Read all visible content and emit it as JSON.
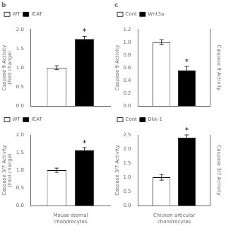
{
  "chart_data": [
    {
      "type": "bar",
      "title": "b",
      "ylabel": "Caspase 9 Activity\n(Fold change)",
      "categories": [
        null
      ],
      "series": [
        {
          "name": "WT",
          "color": "white",
          "values": [
            1.0
          ],
          "errors": [
            0.05
          ]
        },
        {
          "name": "ICAT",
          "color": "black",
          "values": [
            1.75
          ],
          "errors": [
            0.07
          ]
        }
      ],
      "annotations": [
        {
          "text": "*",
          "series": "ICAT"
        }
      ],
      "ylim": [
        0,
        2.0
      ],
      "yticks": [
        {
          "value": 0,
          "label": "0.0"
        },
        0.5,
        {
          "value": 1.0,
          "label": "1.0"
        },
        1.5,
        {
          "value": 2.0,
          "label": "2.0"
        }
      ],
      "grid": false,
      "legend": "upper left",
      "tick_labels": "y"
    },
    {
      "type": "bar",
      "title": "c",
      "ylabel": "Caspase 9 Activity",
      "y2label": "Caspase 9 Activity",
      "categories": [
        null
      ],
      "series": [
        {
          "name": "Cont",
          "color": "white",
          "values": [
            1.0
          ],
          "errors": [
            0.04
          ]
        },
        {
          "name": "Wnt3a",
          "color": "black",
          "values": [
            0.56
          ],
          "errors": [
            0.06
          ]
        }
      ],
      "annotations": [
        {
          "text": "*",
          "series": "Wnt3a"
        }
      ],
      "ylim": [
        0,
        1.2
      ],
      "yticks": [
        {
          "value": 0,
          "label": "0.0"
        },
        0.2,
        0.4,
        0.6,
        0.8,
        {
          "value": 1.0,
          "label": "1.0"
        },
        1.2
      ],
      "grid": false,
      "legend": "upper left",
      "tick_labels": "y"
    },
    {
      "type": "bar",
      "ylabel": "Caspase 3/7 Activity\n(Fold change)",
      "xlabel": "Mouse sternal\nchondrocytes",
      "categories": [
        null
      ],
      "series": [
        {
          "name": "WT",
          "color": "white",
          "values": [
            1.0
          ],
          "errors": [
            0.06
          ]
        },
        {
          "name": "ICAT",
          "color": "black",
          "values": [
            1.57
          ],
          "errors": [
            0.07
          ]
        }
      ],
      "annotations": [
        {
          "text": "*",
          "series": "ICAT"
        }
      ],
      "ylim": [
        0,
        2.0
      ],
      "yticks": [
        {
          "value": 0,
          "label": "0.0"
        },
        0.5,
        {
          "value": 1.0,
          "label": "1.0"
        },
        1.5,
        {
          "value": 2.0,
          "label": "2.0"
        }
      ],
      "grid": false,
      "legend": "upper left",
      "tick_labels": "y"
    },
    {
      "type": "bar",
      "ylabel": "Caspase 3/7 Activity",
      "y2label": "Caspase 3/7 Activity",
      "xlabel": "Chicken articular\nchondrocytes",
      "categories": [
        null
      ],
      "series": [
        {
          "name": "Cont",
          "color": "white",
          "values": [
            1.0
          ],
          "errors": [
            0.1
          ]
        },
        {
          "name": "Dkk-1",
          "color": "black",
          "values": [
            2.4
          ],
          "errors": [
            0.1
          ]
        }
      ],
      "annotations": [
        {
          "text": "*",
          "series": "Dkk-1"
        }
      ],
      "ylim": [
        0,
        2.5
      ],
      "yticks": [
        {
          "value": 0,
          "label": "0.0"
        },
        0.5,
        {
          "value": 1.0,
          "label": "1.0"
        },
        1.5,
        {
          "value": 2.0,
          "label": "2.0"
        },
        2.5
      ],
      "grid": false,
      "legend": "upper left",
      "tick_labels": "y"
    }
  ]
}
